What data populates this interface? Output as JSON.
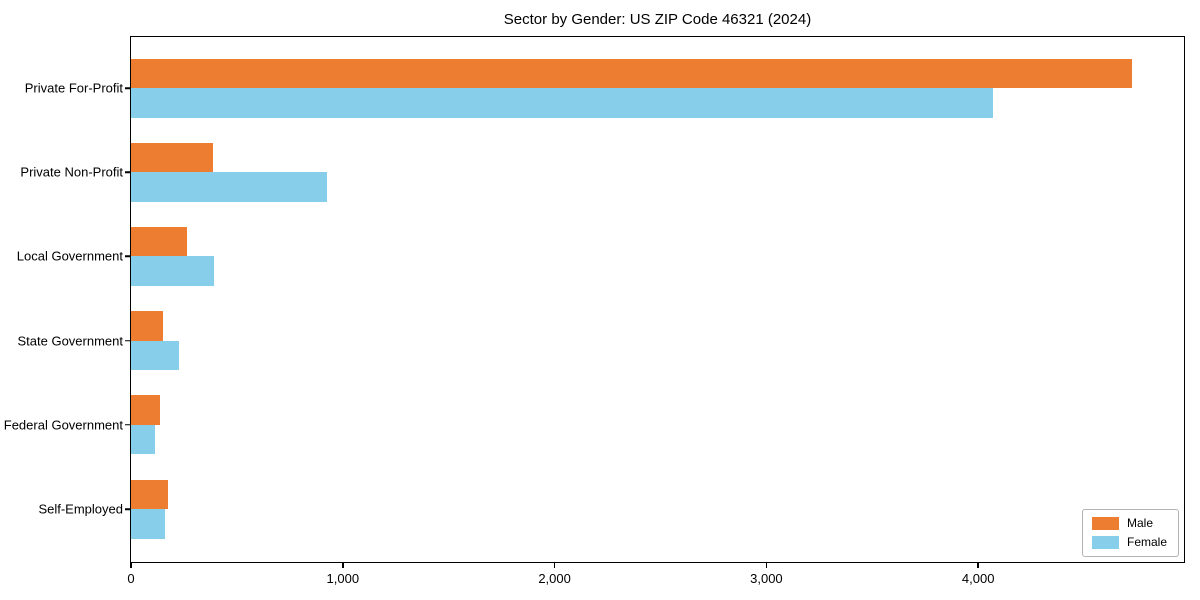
{
  "chart_data": {
    "type": "bar",
    "orientation": "horizontal",
    "title": "Sector by Gender: US ZIP Code 46321 (2024)",
    "categories": [
      "Private For-Profit",
      "Private Non-Profit",
      "Local Government",
      "State Government",
      "Federal Government",
      "Self-Employed"
    ],
    "series": [
      {
        "name": "Male",
        "color": "#ED7D31",
        "values": [
          4727,
          388,
          264,
          151,
          138,
          177
        ]
      },
      {
        "name": "Female",
        "color": "#87CEEB",
        "values": [
          4072,
          926,
          391,
          226,
          114,
          161
        ]
      }
    ],
    "xlabel": "",
    "ylabel": "",
    "xlim": [
      0,
      4967
    ],
    "xticks": [
      0,
      1000,
      2000,
      3000,
      4000
    ],
    "xtick_labels": [
      "0",
      "1,000",
      "2,000",
      "3,000",
      "4,000"
    ],
    "grid": false,
    "plot_background": "#ffffff",
    "legend_position": "lower right",
    "legend_entries": [
      "Male",
      "Female"
    ]
  }
}
